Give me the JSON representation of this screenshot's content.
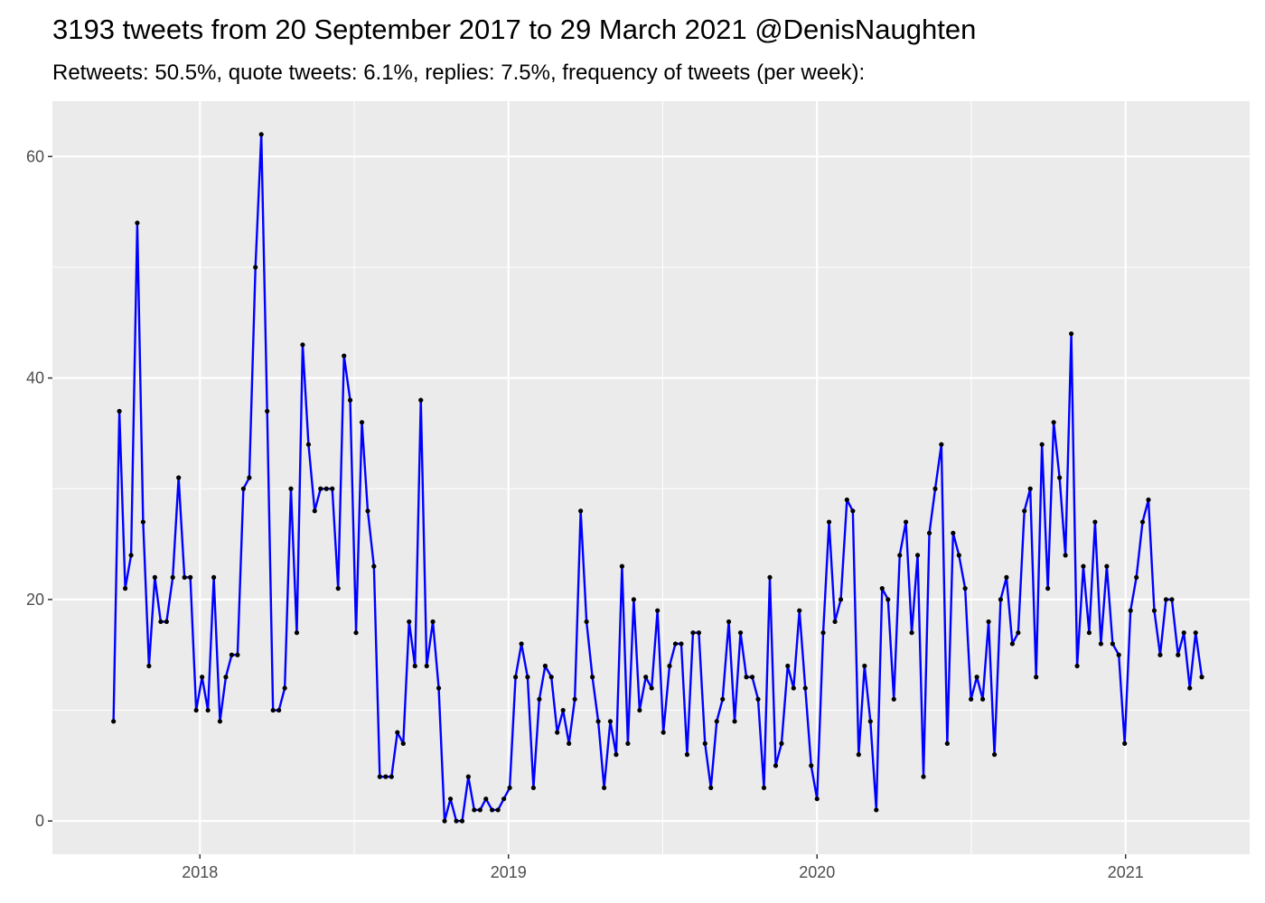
{
  "chart_data": {
    "type": "line",
    "title": "3193 tweets from 20 September 2017 to 29 March 2021 @DenisNaughten",
    "subtitle": "Retweets: 50.5%, quote tweets: 6.1%, replies: 7.5%, frequency of tweets (per week):",
    "x": [
      2017.72,
      2017.739,
      2017.758,
      2017.777,
      2017.797,
      2017.816,
      2017.835,
      2017.854,
      2017.873,
      2017.892,
      2017.912,
      2017.931,
      2017.95,
      2017.969,
      2017.988,
      2018.007,
      2018.026,
      2018.045,
      2018.065,
      2018.084,
      2018.103,
      2018.122,
      2018.141,
      2018.16,
      2018.18,
      2018.199,
      2018.218,
      2018.237,
      2018.256,
      2018.275,
      2018.295,
      2018.314,
      2018.333,
      2018.352,
      2018.372,
      2018.391,
      2018.41,
      2018.429,
      2018.448,
      2018.467,
      2018.487,
      2018.506,
      2018.525,
      2018.544,
      2018.564,
      2018.583,
      2018.602,
      2018.621,
      2018.64,
      2018.659,
      2018.678,
      2018.697,
      2018.716,
      2018.735,
      2018.755,
      2018.774,
      2018.793,
      2018.812,
      2018.831,
      2018.85,
      2018.87,
      2018.889,
      2018.908,
      2018.927,
      2018.947,
      2018.966,
      2018.985,
      2019.004,
      2019.023,
      2019.042,
      2019.062,
      2019.081,
      2019.1,
      2019.119,
      2019.139,
      2019.158,
      2019.177,
      2019.196,
      2019.215,
      2019.234,
      2019.253,
      2019.272,
      2019.291,
      2019.31,
      2019.33,
      2019.349,
      2019.368,
      2019.387,
      2019.406,
      2019.425,
      2019.445,
      2019.464,
      2019.483,
      2019.502,
      2019.522,
      2019.541,
      2019.56,
      2019.579,
      2019.598,
      2019.617,
      2019.637,
      2019.656,
      2019.675,
      2019.694,
      2019.714,
      2019.733,
      2019.752,
      2019.771,
      2019.79,
      2019.809,
      2019.828,
      2019.847,
      2019.866,
      2019.885,
      2019.905,
      2019.924,
      2019.943,
      2019.962,
      2019.981,
      2020.0,
      2020.02,
      2020.039,
      2020.058,
      2020.077,
      2020.097,
      2020.116,
      2020.135,
      2020.154,
      2020.173,
      2020.192,
      2020.211,
      2020.23,
      2020.249,
      2020.268,
      2020.288,
      2020.307,
      2020.326,
      2020.345,
      2020.364,
      2020.383,
      2020.403,
      2020.422,
      2020.441,
      2020.46,
      2020.48,
      2020.499,
      2020.518,
      2020.537,
      2020.556,
      2020.575,
      2020.595,
      2020.614,
      2020.633,
      2020.652,
      2020.672,
      2020.691,
      2020.71,
      2020.729,
      2020.748,
      2020.767,
      2020.786,
      2020.805,
      2020.824,
      2020.843,
      2020.863,
      2020.882,
      2020.901,
      2020.92,
      2020.939,
      2020.958,
      2020.978,
      2020.997,
      2021.016,
      2021.035,
      2021.055,
      2021.074,
      2021.093,
      2021.112,
      2021.131,
      2021.15,
      2021.17,
      2021.189,
      2021.208,
      2021.227,
      2021.247
    ],
    "series": [
      {
        "color": "#0000ff",
        "point_color": "#000000",
        "values": [
          9,
          37,
          21,
          24,
          54,
          27,
          14,
          22,
          18,
          18,
          22,
          31,
          22,
          22,
          10,
          13,
          10,
          22,
          9,
          13,
          15,
          15,
          30,
          31,
          50,
          62,
          37,
          10,
          10,
          12,
          30,
          17,
          43,
          34,
          28,
          30,
          30,
          30,
          21,
          42,
          38,
          17,
          36,
          28,
          23,
          4,
          4,
          4,
          8,
          7,
          18,
          14,
          38,
          14,
          18,
          12,
          0,
          2,
          0,
          0,
          4,
          1,
          1,
          2,
          1,
          1,
          2,
          3,
          13,
          16,
          13,
          3,
          11,
          14,
          13,
          8,
          10,
          7,
          11,
          28,
          18,
          13,
          9,
          3,
          9,
          6,
          23,
          7,
          20,
          10,
          13,
          12,
          19,
          8,
          14,
          16,
          16,
          6,
          17,
          17,
          7,
          3,
          9,
          11,
          18,
          9,
          17,
          13,
          13,
          11,
          3,
          22,
          5,
          7,
          14,
          12,
          19,
          12,
          5,
          2,
          17,
          27,
          18,
          20,
          29,
          28,
          6,
          14,
          9,
          1,
          21,
          20,
          11,
          24,
          27,
          17,
          24,
          4,
          26,
          30,
          34,
          7,
          26,
          24,
          21,
          11,
          13,
          11,
          18,
          6,
          20,
          22,
          16,
          17,
          28,
          30,
          13,
          34,
          21,
          36,
          31,
          24,
          44,
          14,
          23,
          17,
          27,
          16,
          23,
          16,
          15,
          7,
          19,
          22,
          27,
          29,
          19,
          15,
          20,
          20,
          15,
          17,
          12,
          17,
          13
        ]
      }
    ],
    "xlim": [
      2017.522,
      2021.402
    ],
    "xticks": [
      2018,
      2019,
      2020,
      2021
    ],
    "ylim": [
      -3.0,
      65.0
    ],
    "yticks": [
      0,
      20,
      40,
      60
    ],
    "grid": true
  }
}
